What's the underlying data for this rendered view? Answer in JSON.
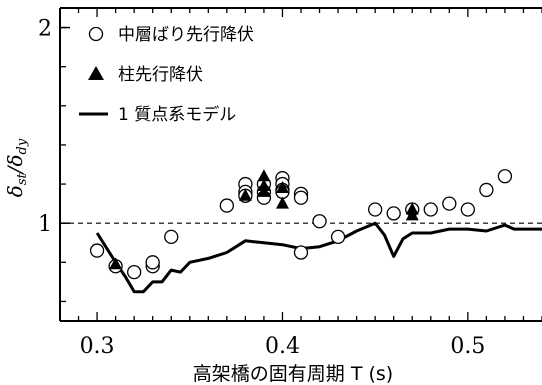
{
  "chart_data": {
    "type": "scatter",
    "xlabel": "高架橋の固有周期 T (s)",
    "ylabel": "δst/δdy",
    "xlim": [
      0.28,
      0.54
    ],
    "ylim": [
      0.5,
      2.1
    ],
    "xticks": [
      "0.3",
      "0.4",
      "0.5"
    ],
    "yticks": [
      "1",
      "2"
    ],
    "reference_line": {
      "y": 1.0,
      "style": "dashed"
    },
    "legend_position": "top-left",
    "grid": false,
    "series": [
      {
        "name": "中層ばり先行降伏",
        "marker": "open-circle",
        "x": [
          0.3,
          0.31,
          0.32,
          0.33,
          0.33,
          0.34,
          0.37,
          0.38,
          0.38,
          0.38,
          0.39,
          0.39,
          0.39,
          0.4,
          0.4,
          0.4,
          0.4,
          0.41,
          0.41,
          0.41,
          0.42,
          0.43,
          0.45,
          0.46,
          0.47,
          0.48,
          0.49,
          0.5,
          0.51,
          0.52
        ],
        "y": [
          0.86,
          0.78,
          0.75,
          0.78,
          0.8,
          0.93,
          1.09,
          1.2,
          1.16,
          1.14,
          1.2,
          1.16,
          1.13,
          1.23,
          1.2,
          1.17,
          1.16,
          1.15,
          1.13,
          0.85,
          1.01,
          0.93,
          1.07,
          1.05,
          1.07,
          1.07,
          1.1,
          1.07,
          1.17,
          1.24
        ]
      },
      {
        "name": "柱先行降伏",
        "marker": "filled-triangle",
        "x": [
          0.31,
          0.38,
          0.39,
          0.39,
          0.39,
          0.4,
          0.4,
          0.47,
          0.47
        ],
        "y": [
          0.79,
          1.14,
          1.24,
          1.19,
          1.16,
          1.18,
          1.1,
          1.07,
          1.04
        ]
      },
      {
        "name": "1 質点系モデル",
        "marker": "line",
        "x": [
          0.3,
          0.31,
          0.315,
          0.32,
          0.325,
          0.33,
          0.335,
          0.34,
          0.345,
          0.35,
          0.36,
          0.37,
          0.375,
          0.38,
          0.39,
          0.4,
          0.41,
          0.42,
          0.43,
          0.44,
          0.45,
          0.455,
          0.46,
          0.465,
          0.47,
          0.48,
          0.49,
          0.5,
          0.51,
          0.52,
          0.525,
          0.54
        ],
        "y": [
          0.95,
          0.8,
          0.73,
          0.65,
          0.65,
          0.7,
          0.7,
          0.76,
          0.75,
          0.8,
          0.82,
          0.85,
          0.88,
          0.91,
          0.9,
          0.89,
          0.87,
          0.88,
          0.91,
          0.96,
          1.0,
          0.94,
          0.83,
          0.92,
          0.95,
          0.95,
          0.97,
          0.97,
          0.96,
          0.99,
          0.97,
          0.97
        ]
      }
    ]
  }
}
